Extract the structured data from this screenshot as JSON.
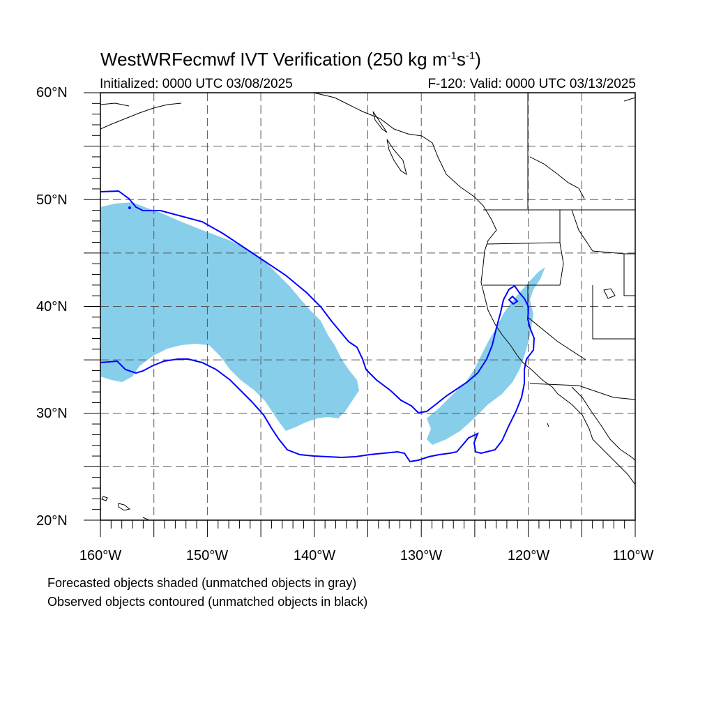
{
  "figure": {
    "title_main": "WestWRFecmwf IVT Verification (250 kg m",
    "title_exp1": "-1",
    "title_mid": "s",
    "title_exp2": "-1",
    "title_end": ")",
    "init_label": "Initialized: 0000 UTC 03/08/2025",
    "valid_label": "F-120: Valid: 0000 UTC 03/13/2025"
  },
  "axes": {
    "lat_labels": [
      "60°N",
      "50°N",
      "40°N",
      "30°N",
      "20°N"
    ],
    "lon_labels": [
      "160°W",
      "150°W",
      "140°W",
      "130°W",
      "120°W",
      "110°W"
    ],
    "lat_range": [
      20,
      60
    ],
    "lon_range": [
      -160,
      -110
    ],
    "grid_spacing_deg": 5,
    "grid": "dashed"
  },
  "legend": {
    "line1": "Forecasted objects shaded (unmatched objects in gray)",
    "line2": "Observed objects contoured (unmatched objects in black)"
  },
  "colors": {
    "forecast_fill": "#87ceeb",
    "observed_contour": "#0000ff",
    "coastline": "#000000",
    "grid": "#555555"
  }
}
